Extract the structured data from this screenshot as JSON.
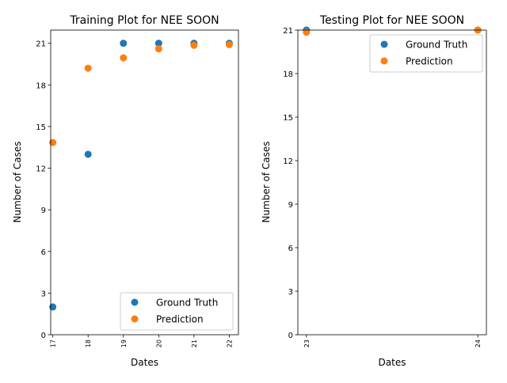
{
  "chart_data": [
    {
      "type": "scatter",
      "title": "Training Plot for NEE SOON",
      "xlabel": "Dates",
      "ylabel": "Number of Cases",
      "x_ticks": [
        "17",
        "18",
        "19",
        "20",
        "21",
        "22"
      ],
      "y_ticks": [
        "0",
        "3",
        "6",
        "9",
        "12",
        "15",
        "18",
        "21"
      ],
      "xlim": [
        16.94,
        22.26
      ],
      "ylim": [
        0,
        21.95
      ],
      "legend_position": "lower-right",
      "series": [
        {
          "name": "Ground Truth",
          "color": "#1f77b4",
          "x": [
            17,
            18,
            19,
            20,
            21,
            22
          ],
          "y": [
            2,
            13,
            21,
            21,
            21,
            21
          ]
        },
        {
          "name": "Prediction",
          "color": "#ff7f0e",
          "x": [
            17,
            18,
            19,
            20,
            21,
            22
          ],
          "y": [
            13.85,
            19.2,
            19.95,
            20.6,
            20.85,
            20.9
          ]
        }
      ]
    },
    {
      "type": "scatter",
      "title": "Testing Plot for NEE SOON",
      "xlabel": "Dates",
      "ylabel": "Number of Cases",
      "x_ticks": [
        "23",
        "24"
      ],
      "y_ticks": [
        "0",
        "3",
        "6",
        "9",
        "12",
        "15",
        "18",
        "21"
      ],
      "xlim": [
        22.95,
        24.05
      ],
      "ylim": [
        0,
        21
      ],
      "legend_position": "upper-right",
      "series": [
        {
          "name": "Ground Truth",
          "color": "#1f77b4",
          "x": [
            23,
            24
          ],
          "y": [
            21,
            21
          ]
        },
        {
          "name": "Prediction",
          "color": "#ff7f0e",
          "x": [
            23,
            24
          ],
          "y": [
            20.85,
            21
          ]
        }
      ]
    }
  ]
}
